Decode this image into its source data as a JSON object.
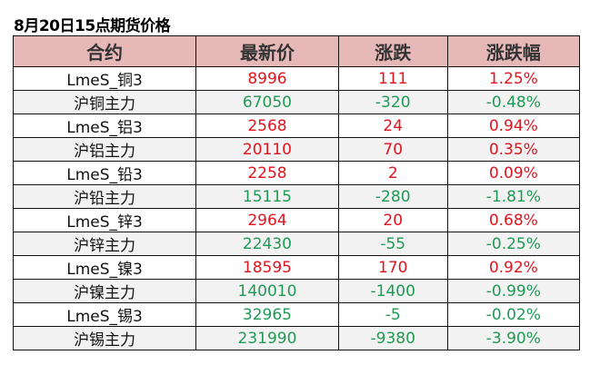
{
  "title": "8月20日15点期货价格",
  "headers": [
    "合约",
    "最新价",
    "涨跌",
    "涨跌幅"
  ],
  "colors": {
    "up": "#e0141e",
    "down": "#1f9a55",
    "header_bg": "#e6b8b7"
  },
  "rows": [
    {
      "name": "LmeS_铜3",
      "price": "8996",
      "change": "111",
      "pct": "1.25%",
      "dir": "up"
    },
    {
      "name": "沪铜主力",
      "price": "67050",
      "change": "-320",
      "pct": "-0.48%",
      "dir": "down"
    },
    {
      "name": "LmeS_铝3",
      "price": "2568",
      "change": "24",
      "pct": "0.94%",
      "dir": "up"
    },
    {
      "name": "沪铝主力",
      "price": "20110",
      "change": "70",
      "pct": "0.35%",
      "dir": "up"
    },
    {
      "name": "LmeS_铅3",
      "price": "2258",
      "change": "2",
      "pct": "0.09%",
      "dir": "up"
    },
    {
      "name": "沪铅主力",
      "price": "15115",
      "change": "-280",
      "pct": "-1.81%",
      "dir": "down"
    },
    {
      "name": "LmeS_锌3",
      "price": "2964",
      "change": "20",
      "pct": "0.68%",
      "dir": "up"
    },
    {
      "name": "沪锌主力",
      "price": "22430",
      "change": "-55",
      "pct": "-0.25%",
      "dir": "down"
    },
    {
      "name": "LmeS_镍3",
      "price": "18595",
      "change": "170",
      "pct": "0.92%",
      "dir": "up"
    },
    {
      "name": "沪镍主力",
      "price": "140010",
      "change": "-1400",
      "pct": "-0.99%",
      "dir": "down"
    },
    {
      "name": "LmeS_锡3",
      "price": "32965",
      "change": "-5",
      "pct": "-0.02%",
      "dir": "down"
    },
    {
      "name": "沪锡主力",
      "price": "231990",
      "change": "-9380",
      "pct": "-3.90%",
      "dir": "down"
    }
  ]
}
